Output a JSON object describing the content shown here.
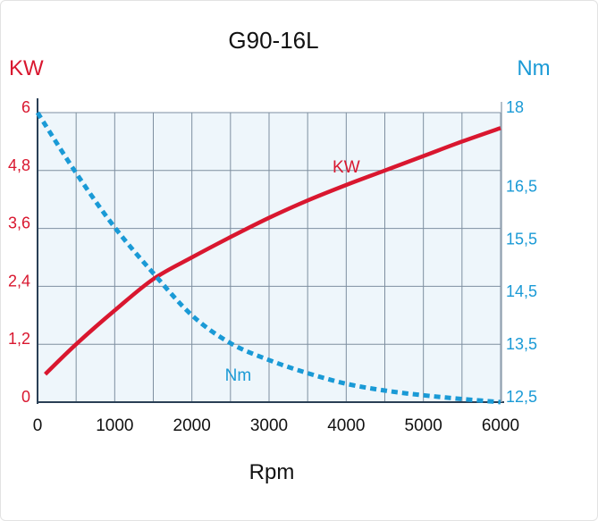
{
  "colors": {
    "kw": "#d9172f",
    "nm": "#1a9ad6",
    "grid": "#7e8fa0",
    "plot_bg": "#eef6fb",
    "axis": "#2a3f55"
  },
  "chart_data": {
    "type": "line",
    "title": "G90-16L",
    "xlabel": "Rpm",
    "x_ticks": [
      "0",
      "1000",
      "2000",
      "3000",
      "4000",
      "5000",
      "6000"
    ],
    "xlim": [
      0,
      6000
    ],
    "grid": true,
    "y_left": {
      "label": "KW",
      "lim": [
        0,
        6
      ],
      "ticks": [
        {
          "value": 0,
          "label": "0"
        },
        {
          "value": 1.2,
          "label": "1,2"
        },
        {
          "value": 2.4,
          "label": "2,4"
        },
        {
          "value": 3.6,
          "label": "3,6"
        },
        {
          "value": 4.8,
          "label": "4,8"
        },
        {
          "value": 6,
          "label": "6"
        }
      ]
    },
    "y_right": {
      "label": "Nm",
      "lim": [
        12.5,
        18
      ],
      "ticks": [
        {
          "value": 12.5,
          "label": "12,5"
        },
        {
          "value": 13.5,
          "label": "13,5"
        },
        {
          "value": 14.5,
          "label": "14,5"
        },
        {
          "value": 15.5,
          "label": "15,5"
        },
        {
          "value": 16.5,
          "label": "16,5"
        },
        {
          "value": 18,
          "label": "18"
        }
      ]
    },
    "series": [
      {
        "name": "KW",
        "axis": "left",
        "style": "solid",
        "x": [
          100,
          500,
          1000,
          1500,
          2000,
          2500,
          3000,
          3500,
          4000,
          4500,
          5000,
          5500,
          6000
        ],
        "values": [
          0.58,
          1.2,
          1.9,
          2.55,
          3.0,
          3.42,
          3.82,
          4.18,
          4.5,
          4.8,
          5.1,
          5.4,
          5.68
        ]
      },
      {
        "name": "Nm",
        "axis": "right",
        "style": "dashed",
        "x": [
          0,
          500,
          1000,
          1500,
          2000,
          2500,
          3000,
          3500,
          4000,
          4500,
          5000,
          5500,
          6000
        ],
        "values": [
          18.0,
          16.85,
          15.82,
          14.95,
          14.15,
          13.62,
          13.3,
          13.05,
          12.85,
          12.72,
          12.63,
          12.56,
          12.5
        ]
      }
    ],
    "annotations": [
      {
        "text": "KW",
        "series": "KW",
        "at_x": 4000
      },
      {
        "text": "Nm",
        "series": "Nm",
        "at_x": 2600
      }
    ]
  }
}
